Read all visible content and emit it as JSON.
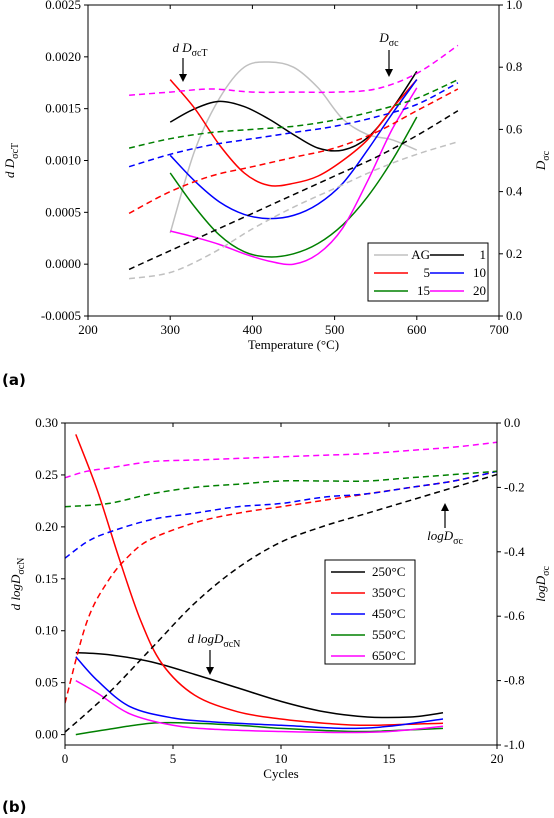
{
  "panels": [
    {
      "label": "(a)"
    },
    {
      "label": "(b)"
    }
  ],
  "chart_data": [
    {
      "type": "line",
      "panel": "(a)",
      "xlabel": "Temperature (°C)",
      "ylabel_left": "d DσcT",
      "ylabel_right": "Dσc",
      "xlim": [
        200,
        700
      ],
      "ylim_left": [
        -0.0005,
        0.0025
      ],
      "ylim_right": [
        0.0,
        1.0
      ],
      "x_ticks": [
        "200",
        "300",
        "400",
        "500",
        "600",
        "700"
      ],
      "y_ticks_left": [
        "-0.0005",
        "0.0000",
        "0.0005",
        "0.0010",
        "0.0015",
        "0.0020",
        "0.0025"
      ],
      "y_ticks_right": [
        "0.0",
        "0.2",
        "0.4",
        "0.6",
        "0.8",
        "1.0"
      ],
      "annotations": [
        {
          "text": "d DσcT",
          "target": "solid curves"
        },
        {
          "text": "Dσc",
          "target": "dashed curves"
        }
      ],
      "legend": {
        "position": "bottom-right",
        "columns": 2
      },
      "series": [
        {
          "name": "AG",
          "color": "#c0c0c0",
          "axis": "left",
          "style": "solid",
          "x": [
            300,
            330,
            360,
            390,
            420,
            450,
            480,
            510,
            540,
            570,
            600
          ],
          "y": [
            0.0003,
            0.0011,
            0.0016,
            0.0019,
            0.00195,
            0.0019,
            0.0017,
            0.0014,
            0.00125,
            0.0012,
            0.0011
          ]
        },
        {
          "name": "1",
          "color": "#000000",
          "axis": "left",
          "style": "solid",
          "x": [
            300,
            330,
            360,
            390,
            420,
            450,
            480,
            510,
            540,
            570,
            600
          ],
          "y": [
            0.00137,
            0.0015,
            0.00157,
            0.00152,
            0.0014,
            0.00125,
            0.00112,
            0.0011,
            0.00122,
            0.0015,
            0.00186
          ]
        },
        {
          "name": "5",
          "color": "#ff0000",
          "axis": "left",
          "style": "solid",
          "x": [
            300,
            330,
            360,
            390,
            420,
            450,
            480,
            510,
            540,
            570,
            600
          ],
          "y": [
            0.00178,
            0.0015,
            0.00115,
            0.00088,
            0.00076,
            0.00078,
            0.00085,
            0.001,
            0.0012,
            0.0015,
            0.00178
          ]
        },
        {
          "name": "10",
          "color": "#0000ff",
          "axis": "left",
          "style": "solid",
          "x": [
            300,
            330,
            360,
            390,
            420,
            450,
            480,
            510,
            540,
            570,
            600
          ],
          "y": [
            0.00105,
            0.0008,
            0.0006,
            0.00048,
            0.00044,
            0.00047,
            0.00058,
            0.00078,
            0.0011,
            0.00145,
            0.00178
          ]
        },
        {
          "name": "15",
          "color": "#008000",
          "axis": "left",
          "style": "solid",
          "x": [
            300,
            330,
            360,
            390,
            420,
            450,
            480,
            510,
            540,
            570,
            600
          ],
          "y": [
            0.00088,
            0.00055,
            0.00028,
            0.00012,
            7e-05,
            0.0001,
            0.0002,
            0.00038,
            0.00065,
            0.001,
            0.00142
          ]
        },
        {
          "name": "20",
          "color": "#ff00ff",
          "axis": "left",
          "style": "solid",
          "x": [
            300,
            330,
            360,
            390,
            420,
            450,
            480,
            510,
            540,
            570,
            600
          ],
          "y": [
            0.00032,
            0.00026,
            0.00019,
            0.0001,
            3e-05,
            0.0,
            0.0001,
            0.00035,
            0.0008,
            0.0013,
            0.0017
          ]
        },
        {
          "name": "AG",
          "color": "#c0c0c0",
          "axis": "right",
          "style": "dashed",
          "x": [
            250,
            300,
            350,
            400,
            450,
            500,
            550,
            600,
            650
          ],
          "y": [
            0.12,
            0.14,
            0.2,
            0.28,
            0.35,
            0.41,
            0.47,
            0.52,
            0.56
          ]
        },
        {
          "name": "1",
          "color": "#000000",
          "axis": "right",
          "style": "dashed",
          "x": [
            250,
            300,
            350,
            400,
            450,
            500,
            550,
            600,
            650
          ],
          "y": [
            0.15,
            0.21,
            0.27,
            0.33,
            0.39,
            0.45,
            0.51,
            0.58,
            0.66
          ]
        },
        {
          "name": "5",
          "color": "#ff0000",
          "axis": "right",
          "style": "dashed",
          "x": [
            250,
            300,
            350,
            400,
            450,
            500,
            550,
            600,
            650
          ],
          "y": [
            0.33,
            0.4,
            0.45,
            0.48,
            0.51,
            0.54,
            0.59,
            0.66,
            0.73
          ]
        },
        {
          "name": "10",
          "color": "#0000ff",
          "axis": "right",
          "style": "dashed",
          "x": [
            250,
            300,
            350,
            400,
            450,
            500,
            550,
            600,
            650
          ],
          "y": [
            0.48,
            0.52,
            0.55,
            0.57,
            0.59,
            0.61,
            0.64,
            0.68,
            0.75
          ]
        },
        {
          "name": "15",
          "color": "#008000",
          "axis": "right",
          "style": "dashed",
          "x": [
            250,
            300,
            350,
            400,
            450,
            500,
            550,
            600,
            650
          ],
          "y": [
            0.54,
            0.57,
            0.59,
            0.6,
            0.61,
            0.63,
            0.66,
            0.7,
            0.76
          ]
        },
        {
          "name": "20",
          "color": "#ff00ff",
          "axis": "right",
          "style": "dashed",
          "x": [
            250,
            300,
            350,
            400,
            450,
            500,
            550,
            600,
            650
          ],
          "y": [
            0.71,
            0.72,
            0.73,
            0.72,
            0.72,
            0.72,
            0.73,
            0.78,
            0.87
          ]
        }
      ]
    },
    {
      "type": "line",
      "panel": "(b)",
      "xlabel": "Cycles",
      "ylabel_left": "d logDσcN",
      "ylabel_right": "logDσc",
      "xlim": [
        0,
        20
      ],
      "ylim_left": [
        -0.01,
        0.3
      ],
      "ylim_right": [
        -1.0,
        0.0
      ],
      "x_ticks": [
        "0",
        "5",
        "10",
        "15",
        "20"
      ],
      "y_ticks_left": [
        "0.00",
        "0.05",
        "0.10",
        "0.15",
        "0.20",
        "0.25",
        "0.30"
      ],
      "y_ticks_right": [
        "-1.0",
        "-0.8",
        "-0.6",
        "-0.4",
        "-0.2",
        "0.0"
      ],
      "annotations": [
        {
          "text": "d logDσcN",
          "target": "solid curves"
        },
        {
          "text": "logDσc",
          "target": "dashed curves"
        }
      ],
      "legend": {
        "position": "center-right",
        "columns": 1
      },
      "series": [
        {
          "name": "250°C",
          "color": "#000000",
          "axis": "left",
          "style": "solid",
          "x": [
            0.5,
            2,
            4,
            6,
            8,
            10,
            12,
            14,
            16,
            17.5
          ],
          "y": [
            0.079,
            0.077,
            0.07,
            0.058,
            0.045,
            0.032,
            0.022,
            0.017,
            0.017,
            0.021
          ]
        },
        {
          "name": "350°C",
          "color": "#ff0000",
          "axis": "left",
          "style": "solid",
          "x": [
            0.5,
            1.5,
            2.5,
            3.5,
            4.5,
            6,
            8,
            10,
            12,
            14,
            17.5
          ],
          "y": [
            0.289,
            0.235,
            0.17,
            0.11,
            0.068,
            0.038,
            0.022,
            0.015,
            0.011,
            0.009,
            0.011
          ]
        },
        {
          "name": "450°C",
          "color": "#0000ff",
          "axis": "left",
          "style": "solid",
          "x": [
            0.5,
            1.5,
            3,
            5,
            7,
            10,
            13,
            15,
            17.5
          ],
          "y": [
            0.075,
            0.052,
            0.027,
            0.016,
            0.012,
            0.009,
            0.006,
            0.008,
            0.015
          ]
        },
        {
          "name": "550°C",
          "color": "#008000",
          "axis": "left",
          "style": "solid",
          "x": [
            0.5,
            2,
            4,
            6,
            8,
            10,
            12,
            14,
            17.5
          ],
          "y": [
            0.0,
            0.005,
            0.011,
            0.011,
            0.009,
            0.006,
            0.004,
            0.003,
            0.006
          ]
        },
        {
          "name": "650°C",
          "color": "#ff00ff",
          "axis": "left",
          "style": "solid",
          "x": [
            0.5,
            1.5,
            3,
            5,
            7,
            10,
            13,
            15,
            17.5
          ],
          "y": [
            0.052,
            0.04,
            0.02,
            0.009,
            0.005,
            0.003,
            0.002,
            0.003,
            0.008
          ]
        },
        {
          "name": "250°C",
          "color": "#000000",
          "axis": "right",
          "style": "dashed",
          "x": [
            0,
            2,
            4,
            6,
            8,
            10,
            12,
            14,
            16,
            18,
            20
          ],
          "y": [
            -0.96,
            -0.84,
            -0.7,
            -0.56,
            -0.45,
            -0.37,
            -0.32,
            -0.28,
            -0.24,
            -0.2,
            -0.16
          ]
        },
        {
          "name": "350°C",
          "color": "#ff0000",
          "axis": "right",
          "style": "dashed",
          "x": [
            0,
            1,
            2,
            3,
            4,
            6,
            8,
            10,
            12,
            14,
            16,
            18,
            20
          ],
          "y": [
            -0.87,
            -0.62,
            -0.49,
            -0.41,
            -0.36,
            -0.31,
            -0.28,
            -0.26,
            -0.24,
            -0.22,
            -0.2,
            -0.18,
            -0.15
          ]
        },
        {
          "name": "450°C",
          "color": "#0000ff",
          "axis": "right",
          "style": "dashed",
          "x": [
            0,
            1,
            2,
            4,
            6,
            8,
            10,
            12,
            14,
            16,
            18,
            20
          ],
          "y": [
            -0.42,
            -0.37,
            -0.34,
            -0.3,
            -0.28,
            -0.26,
            -0.25,
            -0.23,
            -0.22,
            -0.2,
            -0.18,
            -0.15
          ]
        },
        {
          "name": "550°C",
          "color": "#008000",
          "axis": "right",
          "style": "dashed",
          "x": [
            0,
            2,
            4,
            6,
            8,
            10,
            12,
            14,
            16,
            18,
            20
          ],
          "y": [
            -0.26,
            -0.25,
            -0.22,
            -0.2,
            -0.19,
            -0.18,
            -0.18,
            -0.18,
            -0.17,
            -0.16,
            -0.15
          ]
        },
        {
          "name": "650°C",
          "color": "#ff00ff",
          "axis": "right",
          "style": "dashed",
          "x": [
            0,
            1,
            2,
            4,
            6,
            8,
            10,
            12,
            14,
            16,
            18,
            20
          ],
          "y": [
            -0.17,
            -0.15,
            -0.14,
            -0.12,
            -0.115,
            -0.11,
            -0.105,
            -0.1,
            -0.095,
            -0.085,
            -0.075,
            -0.06
          ]
        }
      ]
    }
  ]
}
